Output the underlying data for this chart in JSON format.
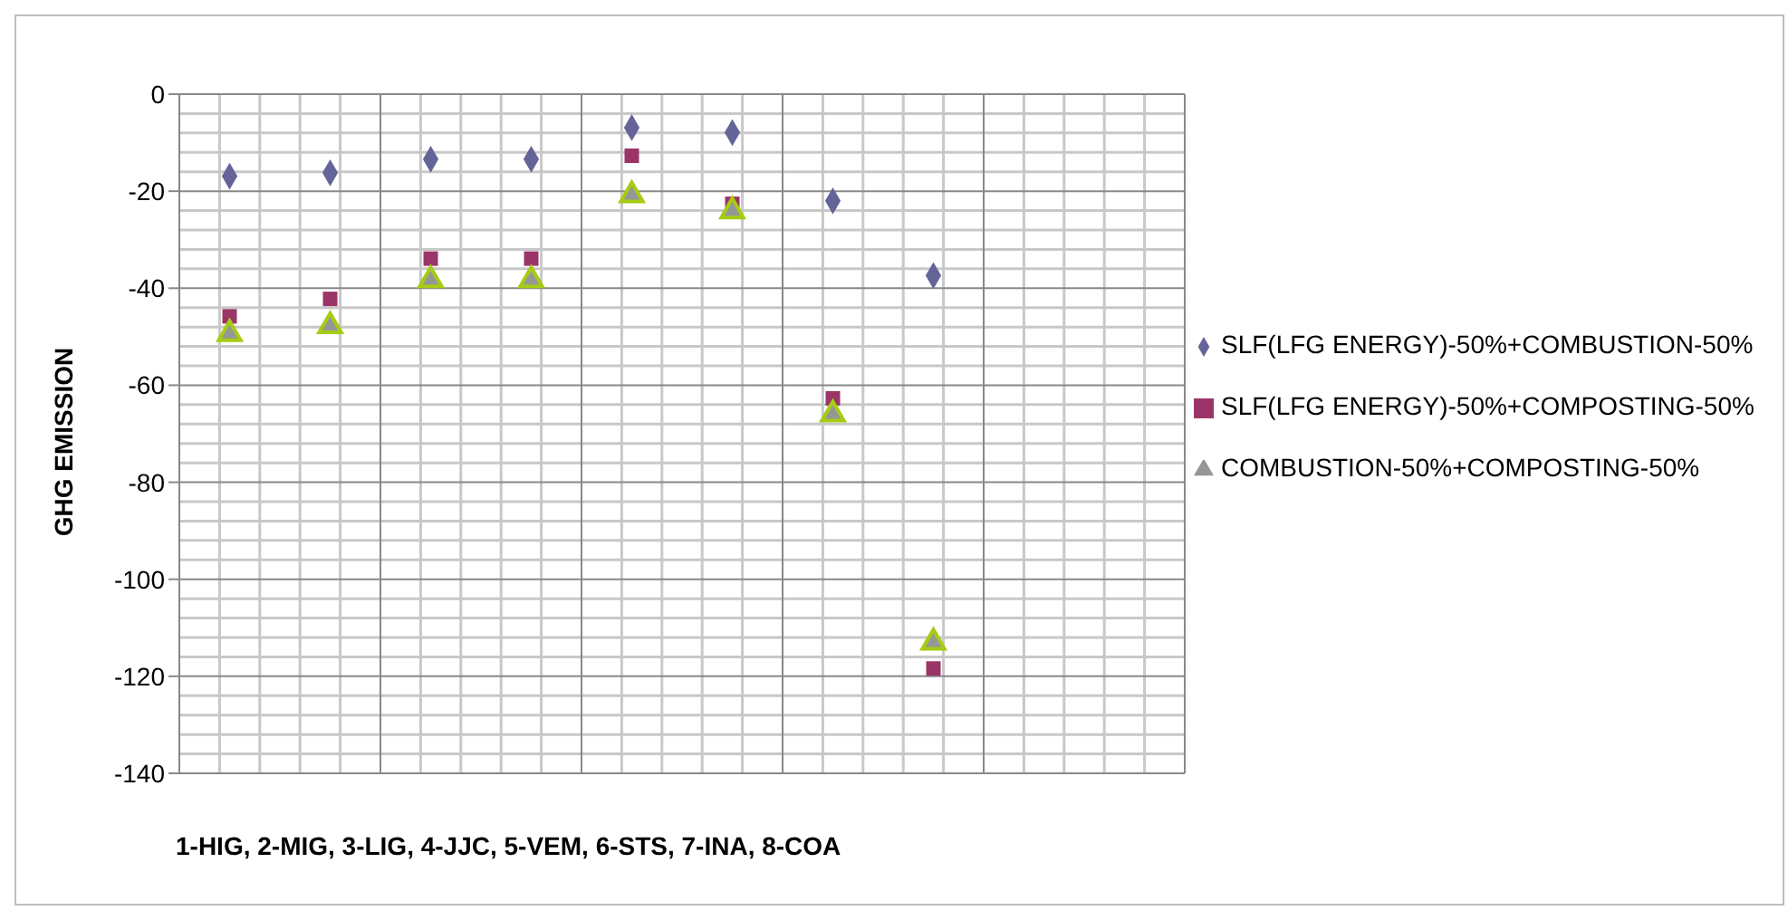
{
  "chart_data": {
    "type": "scatter",
    "xlabel": "1-HIG, 2-MIG, 3-LIG, 4-JJC, 5-VEM, 6-STS, 7-INA, 8-COA",
    "ylabel": "GHG EMISSION",
    "categories": [
      null,
      null,
      null,
      null,
      null,
      null,
      null,
      null,
      null,
      null
    ],
    "series": [
      {
        "name": "SLF(LFG ENERGY)-50%+COMBUSTION-50%",
        "color": "#646499",
        "marker": "diamond",
        "values": [
          -16.9,
          -16.2,
          -13.4,
          -13.4,
          -6.9,
          -7.9,
          -22,
          -37.4,
          null,
          null
        ]
      },
      {
        "name": "SLF(LFG ENERGY)-50%+COMPOSTING-50%",
        "color": "#9b3567",
        "marker": "square",
        "values": [
          -45.8,
          -42.2,
          -33.9,
          -33.9,
          -12.7,
          -22.6,
          -62.7,
          -118.4,
          null,
          null
        ]
      },
      {
        "name": "COMBUSTION-50%+COMPOSTING-50%",
        "color": "#969696",
        "marker": "triangle",
        "values": [
          -49.4,
          -47.8,
          -38.3,
          -38.3,
          -20.8,
          -24.1,
          -66,
          -113,
          null,
          null
        ]
      }
    ],
    "ylim": [
      -140,
      0
    ],
    "yticks": [
      -140,
      -120,
      -100,
      -80,
      -60,
      -40,
      -20,
      0
    ],
    "tick_labels": "y",
    "grid": true,
    "legend": "right"
  }
}
